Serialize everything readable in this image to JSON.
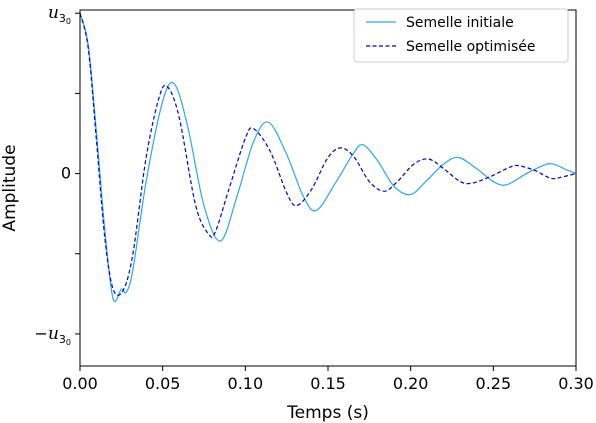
{
  "chart_data": {
    "type": "line",
    "xlabel": "Temps (s)",
    "ylabel": "Amplitude",
    "xlim": [
      0.0,
      0.3
    ],
    "ylim": [
      -1.2,
      1.02
    ],
    "x_ticks": [
      {
        "value": 0.0,
        "label": "0.00"
      },
      {
        "value": 0.05,
        "label": "0.05"
      },
      {
        "value": 0.1,
        "label": "0.10"
      },
      {
        "value": 0.15,
        "label": "0.15"
      },
      {
        "value": 0.2,
        "label": "0.20"
      },
      {
        "value": 0.25,
        "label": "0.25"
      },
      {
        "value": 0.3,
        "label": "0.30"
      }
    ],
    "y_ticks": [
      {
        "value": 1,
        "label": "u3₀",
        "sign": "",
        "base": "u",
        "sub": "3",
        "subsub": "0"
      },
      {
        "value": 0.5,
        "label": ""
      },
      {
        "value": 0,
        "label": "0"
      },
      {
        "value": -0.5,
        "label": ""
      },
      {
        "value": -1,
        "label": "−u3₀",
        "sign": "−",
        "base": "u",
        "sub": "3",
        "subsub": "0"
      }
    ],
    "legend_position": "top-right",
    "grid": false,
    "series": [
      {
        "name": "Semelle initiale",
        "color": "#2aa8ec",
        "style": "solid",
        "x": [
          0.0,
          0.005,
          0.01,
          0.015,
          0.02,
          0.025,
          0.028,
          0.032,
          0.04,
          0.05,
          0.057,
          0.065,
          0.075,
          0.085,
          0.095,
          0.105,
          0.114,
          0.125,
          0.135,
          0.143,
          0.155,
          0.165,
          0.171,
          0.18,
          0.19,
          0.2,
          0.21,
          0.22,
          0.229,
          0.24,
          0.25,
          0.258,
          0.27,
          0.28,
          0.286,
          0.295,
          0.3
        ],
        "y": [
          1.0,
          0.8,
          0.25,
          -0.35,
          -0.78,
          -0.72,
          -0.74,
          -0.6,
          -0.05,
          0.45,
          0.56,
          0.3,
          -0.2,
          -0.42,
          -0.14,
          0.2,
          0.32,
          0.12,
          -0.14,
          -0.23,
          -0.05,
          0.12,
          0.18,
          0.08,
          -0.08,
          -0.13,
          -0.04,
          0.06,
          0.1,
          0.03,
          -0.05,
          -0.07,
          0.0,
          0.05,
          0.06,
          0.02,
          0.0
        ]
      },
      {
        "name": "Semelle optimisée",
        "color": "#0000cc",
        "style": "dashed",
        "x": [
          0.0,
          0.005,
          0.01,
          0.015,
          0.02,
          0.026,
          0.032,
          0.04,
          0.048,
          0.053,
          0.06,
          0.07,
          0.078,
          0.082,
          0.09,
          0.1,
          0.105,
          0.115,
          0.125,
          0.131,
          0.14,
          0.15,
          0.158,
          0.166,
          0.175,
          0.184,
          0.192,
          0.202,
          0.211,
          0.22,
          0.23,
          0.237,
          0.248,
          0.26,
          0.265,
          0.275,
          0.285,
          0.292,
          0.3
        ],
        "y": [
          1.0,
          0.78,
          0.2,
          -0.4,
          -0.72,
          -0.73,
          -0.5,
          0.1,
          0.48,
          0.54,
          0.35,
          -0.2,
          -0.38,
          -0.36,
          -0.1,
          0.22,
          0.28,
          0.14,
          -0.12,
          -0.2,
          -0.1,
          0.1,
          0.16,
          0.1,
          -0.05,
          -0.11,
          -0.05,
          0.06,
          0.09,
          0.03,
          -0.05,
          -0.06,
          -0.02,
          0.04,
          0.05,
          0.02,
          -0.03,
          -0.02,
          0.0
        ]
      }
    ]
  }
}
